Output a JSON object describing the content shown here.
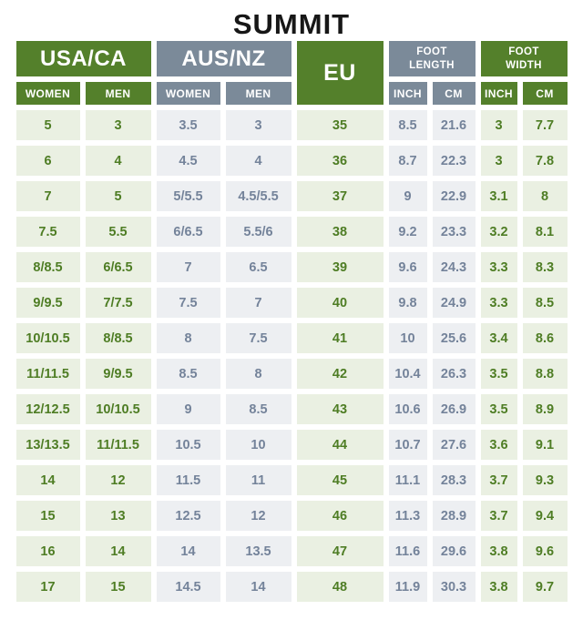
{
  "title": "SUMMIT",
  "colors": {
    "header_green": "#54802B",
    "header_gray": "#7B8A99",
    "cell_green_bg": "#EAF0E2",
    "cell_gray_bg": "#EDEFF2",
    "cell_green_text": "#4E7D24",
    "cell_gray_text": "#74839A",
    "title_text": "#171717"
  },
  "chart_data": {
    "type": "table",
    "title": "SUMMIT",
    "column_groups": [
      {
        "label": "USA/CA",
        "columns": [
          "WOMEN",
          "MEN"
        ],
        "theme": "green"
      },
      {
        "label": "AUS/NZ",
        "columns": [
          "WOMEN",
          "MEN"
        ],
        "theme": "gray"
      },
      {
        "label": "EU",
        "columns": [],
        "theme": "green"
      },
      {
        "label": "FOOT LENGTH",
        "columns": [
          "INCH",
          "CM"
        ],
        "theme": "gray"
      },
      {
        "label": "FOOT WIDTH",
        "columns": [
          "INCH",
          "CM"
        ],
        "theme": "green"
      }
    ],
    "column_themes": [
      "green",
      "green",
      "gray",
      "gray",
      "green",
      "gray",
      "gray",
      "green",
      "green"
    ],
    "rows": [
      [
        "5",
        "3",
        "3.5",
        "3",
        "35",
        "8.5",
        "21.6",
        "3",
        "7.7"
      ],
      [
        "6",
        "4",
        "4.5",
        "4",
        "36",
        "8.7",
        "22.3",
        "3",
        "7.8"
      ],
      [
        "7",
        "5",
        "5/5.5",
        "4.5/5.5",
        "37",
        "9",
        "22.9",
        "3.1",
        "8"
      ],
      [
        "7.5",
        "5.5",
        "6/6.5",
        "5.5/6",
        "38",
        "9.2",
        "23.3",
        "3.2",
        "8.1"
      ],
      [
        "8/8.5",
        "6/6.5",
        "7",
        "6.5",
        "39",
        "9.6",
        "24.3",
        "3.3",
        "8.3"
      ],
      [
        "9/9.5",
        "7/7.5",
        "7.5",
        "7",
        "40",
        "9.8",
        "24.9",
        "3.3",
        "8.5"
      ],
      [
        "10/10.5",
        "8/8.5",
        "8",
        "7.5",
        "41",
        "10",
        "25.6",
        "3.4",
        "8.6"
      ],
      [
        "11/11.5",
        "9/9.5",
        "8.5",
        "8",
        "42",
        "10.4",
        "26.3",
        "3.5",
        "8.8"
      ],
      [
        "12/12.5",
        "10/10.5",
        "9",
        "8.5",
        "43",
        "10.6",
        "26.9",
        "3.5",
        "8.9"
      ],
      [
        "13/13.5",
        "11/11.5",
        "10.5",
        "10",
        "44",
        "10.7",
        "27.6",
        "3.6",
        "9.1"
      ],
      [
        "14",
        "12",
        "11.5",
        "11",
        "45",
        "11.1",
        "28.3",
        "3.7",
        "9.3"
      ],
      [
        "15",
        "13",
        "12.5",
        "12",
        "46",
        "11.3",
        "28.9",
        "3.7",
        "9.4"
      ],
      [
        "16",
        "14",
        "14",
        "13.5",
        "47",
        "11.6",
        "29.6",
        "3.8",
        "9.6"
      ],
      [
        "17",
        "15",
        "14.5",
        "14",
        "48",
        "11.9",
        "30.3",
        "3.8",
        "9.7"
      ]
    ]
  }
}
